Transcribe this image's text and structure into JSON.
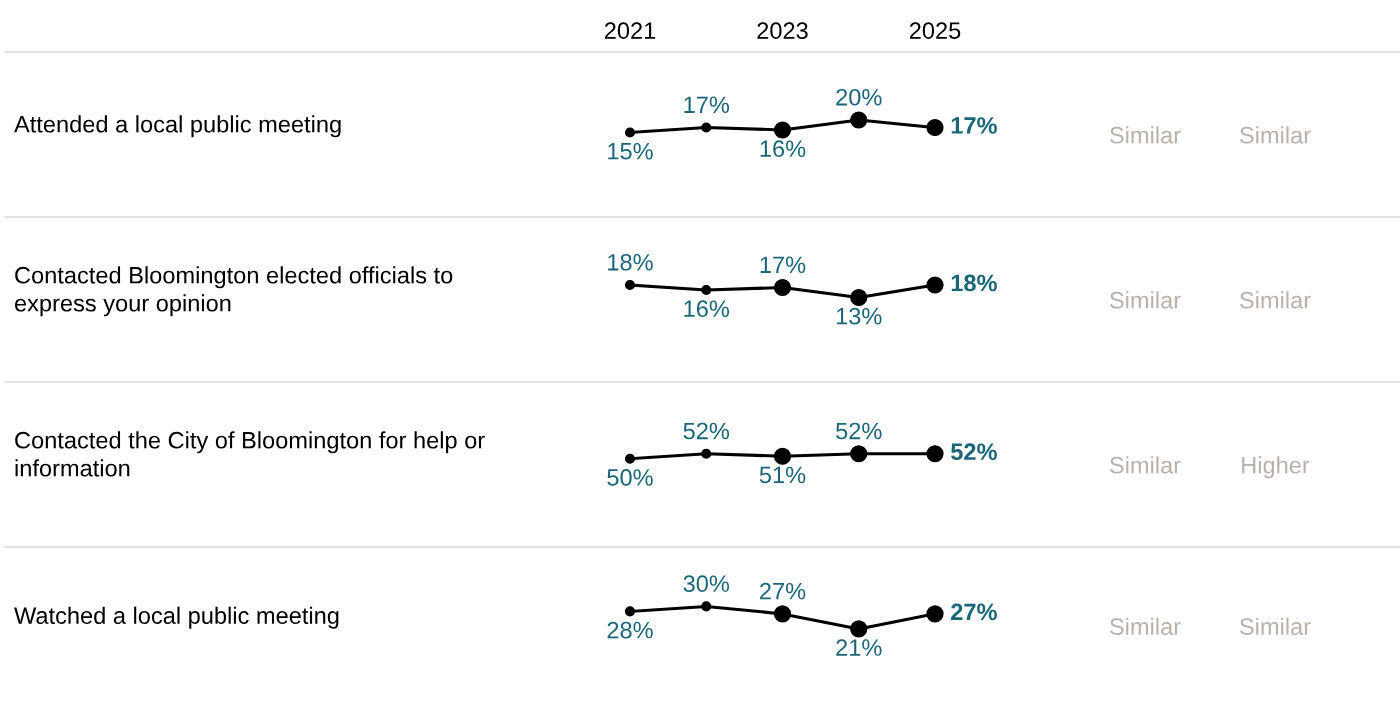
{
  "chart_data": [
    {
      "type": "line",
      "ylabel": "Attended a local public meeting",
      "categories": [
        "2021",
        null,
        "2023",
        null,
        "2025"
      ],
      "marker": "circle",
      "series": [
        {
          "color": "#000000",
          "values": [
            15,
            17,
            16,
            20,
            17
          ],
          "value_labels": [
            "15%",
            "17%",
            "16%",
            "20%",
            "17%"
          ]
        }
      ],
      "annotations": [
        "Similar",
        "Similar"
      ]
    },
    {
      "type": "line",
      "ylabel": "Contacted Bloomington elected officials to\nexpress your opinion",
      "categories": [
        null,
        null,
        null,
        null,
        null
      ],
      "marker": "circle",
      "series": [
        {
          "color": "#000000",
          "values": [
            18,
            16,
            17,
            13,
            18
          ],
          "value_labels": [
            "18%",
            "16%",
            "17%",
            "13%",
            "18%"
          ]
        }
      ],
      "annotations": [
        "Similar",
        "Similar"
      ]
    },
    {
      "type": "line",
      "ylabel": "Contacted the City of Bloomington for help or\ninformation",
      "categories": [
        null,
        null,
        null,
        null,
        null
      ],
      "marker": "circle",
      "series": [
        {
          "color": "#000000",
          "values": [
            50,
            52,
            51,
            52,
            52
          ],
          "value_labels": [
            "50%",
            "52%",
            "51%",
            "52%",
            "52%"
          ]
        }
      ],
      "annotations": [
        "Similar",
        "Higher"
      ]
    },
    {
      "type": "line",
      "ylabel": "Watched a local public meeting",
      "categories": [
        null,
        null,
        null,
        null,
        null
      ],
      "marker": "circle",
      "series": [
        {
          "color": "#000000",
          "values": [
            28,
            30,
            27,
            21,
            27
          ],
          "value_labels": [
            "28%",
            "30%",
            "27%",
            "21%",
            "27%"
          ]
        }
      ],
      "annotations": [
        "Similar",
        "Similar"
      ]
    }
  ]
}
